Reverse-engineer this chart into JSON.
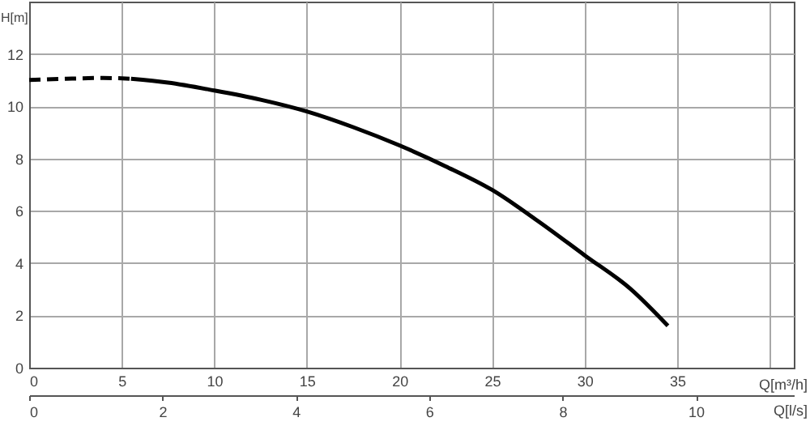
{
  "chart_data": {
    "type": "line",
    "xlabel": "Q[m³/h]",
    "ylabel": "H[m]",
    "x2label": "Q[l/s]",
    "xlim": [
      0,
      41.3
    ],
    "xticks": [
      0,
      5,
      10,
      15,
      20,
      25,
      30,
      35,
      {
        "value": 40,
        "label": null
      }
    ],
    "ylim": [
      0,
      14
    ],
    "yticks": [
      0,
      2,
      4,
      6,
      8,
      10,
      12
    ],
    "x2lim": [
      0,
      11.47
    ],
    "x2ticks": [
      0,
      2,
      4,
      6,
      8,
      10
    ],
    "grid": true,
    "series": [
      {
        "color": "#000000",
        "line_style": "dashed",
        "x": [
          0,
          2,
          4,
          5.5
        ],
        "values": [
          11.0,
          11.05,
          11.08,
          11.05
        ]
      },
      {
        "color": "#000000",
        "line_style": "solid",
        "x": [
          5.5,
          7.5,
          10,
          12.5,
          15,
          17.5,
          20,
          22.5,
          25,
          27.5,
          30,
          32.5,
          34.5
        ],
        "values": [
          11.05,
          10.9,
          10.6,
          10.25,
          9.8,
          9.2,
          8.5,
          7.7,
          6.8,
          5.6,
          4.3,
          3.0,
          1.6
        ]
      }
    ]
  }
}
